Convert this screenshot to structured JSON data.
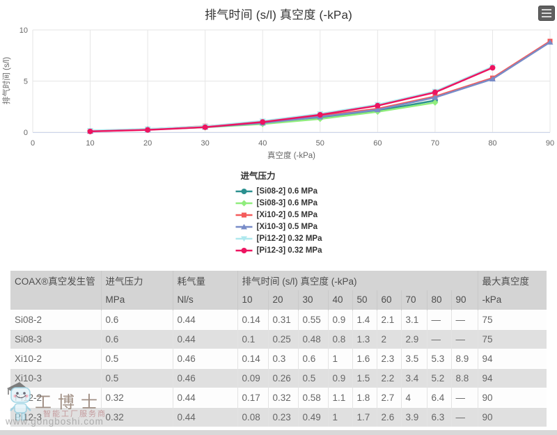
{
  "header": {
    "title": "排气时间 (s/l) 真空度 (-kPa)"
  },
  "chart_data": {
    "type": "line",
    "title": "排气时间 (s/l) 真空度 (-kPa)",
    "xlabel": "真空度 (-kPa)",
    "ylabel": "排气时间 (s/l)",
    "xlim": [
      0,
      90
    ],
    "ylim": [
      0,
      10
    ],
    "xticks": [
      0,
      10,
      20,
      30,
      40,
      50,
      60,
      70,
      80,
      90
    ],
    "yticks": [
      0,
      5,
      10
    ],
    "grid": true,
    "legend_title": "进气压力",
    "legend_position": "bottom-center",
    "x": [
      10,
      20,
      30,
      40,
      50,
      60,
      70,
      80,
      90
    ],
    "series": [
      {
        "name": "[Si08-2] 0.6 MPa",
        "color": "#2b908f",
        "marker": "circle",
        "values": [
          0.14,
          0.31,
          0.55,
          0.9,
          1.4,
          2.1,
          3.1,
          null,
          null
        ]
      },
      {
        "name": "[Si08-3] 0.6 MPa",
        "color": "#90ed7d",
        "marker": "diamond",
        "values": [
          0.1,
          0.25,
          0.48,
          0.8,
          1.3,
          2.0,
          2.9,
          null,
          null
        ]
      },
      {
        "name": "[Xi10-2] 0.5 MPa",
        "color": "#f45b5b",
        "marker": "square",
        "values": [
          0.14,
          0.3,
          0.6,
          1.0,
          1.6,
          2.3,
          3.5,
          5.3,
          8.9
        ]
      },
      {
        "name": "[Xi10-3] 0.5 MPa",
        "color": "#788cc8",
        "marker": "triangle",
        "values": [
          0.09,
          0.26,
          0.5,
          0.9,
          1.5,
          2.2,
          3.4,
          5.2,
          8.8
        ]
      },
      {
        "name": "[Pi12-2] 0.32 MPa",
        "color": "#aee8ee",
        "marker": "triangle-down",
        "values": [
          0.17,
          0.32,
          0.58,
          1.1,
          1.8,
          2.7,
          4.0,
          6.4,
          null
        ]
      },
      {
        "name": "[Pi12-3] 0.32 MPa",
        "color": "#ed1460",
        "marker": "circle",
        "values": [
          0.08,
          0.23,
          0.49,
          1.0,
          1.7,
          2.6,
          3.9,
          6.3,
          null
        ]
      }
    ]
  },
  "table": {
    "columns_row1": [
      {
        "label": "COAX®真空发生管",
        "span": 1
      },
      {
        "label": "进气压力",
        "span": 1
      },
      {
        "label": "耗气量",
        "span": 1
      },
      {
        "label": "排气时间 (s/l) 真空度 (-kPa)",
        "span": 9
      },
      {
        "label": "最大真空度",
        "span": 1
      }
    ],
    "columns_row2": [
      "",
      "MPa",
      "Nl/s",
      "10",
      "20",
      "30",
      "40",
      "50",
      "60",
      "70",
      "80",
      "90",
      "-kPa"
    ],
    "rows": [
      [
        "Si08-2",
        "0.6",
        "0.44",
        "0.14",
        "0.31",
        "0.55",
        "0.9",
        "1.4",
        "2.1",
        "3.1",
        "—",
        "—",
        "75"
      ],
      [
        "Si08-3",
        "0.6",
        "0.44",
        "0.1",
        "0.25",
        "0.48",
        "0.8",
        "1.3",
        "2",
        "2.9",
        "—",
        "—",
        "75"
      ],
      [
        "Xi10-2",
        "0.5",
        "0.46",
        "0.14",
        "0.3",
        "0.6",
        "1",
        "1.6",
        "2.3",
        "3.5",
        "5.3",
        "8.9",
        "94"
      ],
      [
        "Xi10-3",
        "0.5",
        "0.46",
        "0.09",
        "0.26",
        "0.5",
        "0.9",
        "1.5",
        "2.2",
        "3.4",
        "5.2",
        "8.8",
        "94"
      ],
      [
        "Pi12-2",
        "0.32",
        "0.44",
        "0.17",
        "0.32",
        "0.58",
        "1.1",
        "1.8",
        "2.7",
        "4",
        "6.4",
        "—",
        "90"
      ],
      [
        "Pi12-3",
        "0.32",
        "0.44",
        "0.08",
        "0.23",
        "0.49",
        "1",
        "1.7",
        "2.6",
        "3.9",
        "6.3",
        "—",
        "90"
      ]
    ]
  },
  "watermark": {
    "brand": "工博士",
    "tagline": "智能工厂服务商",
    "url": "www.gongboshi.com"
  },
  "colors": {
    "grid": "#e6e6e6",
    "axis_line": "#ccd6eb",
    "axis_text": "#666666",
    "table_header_bg": "#d4d4d4",
    "table_stripe_bg": "#e0e0e0"
  }
}
